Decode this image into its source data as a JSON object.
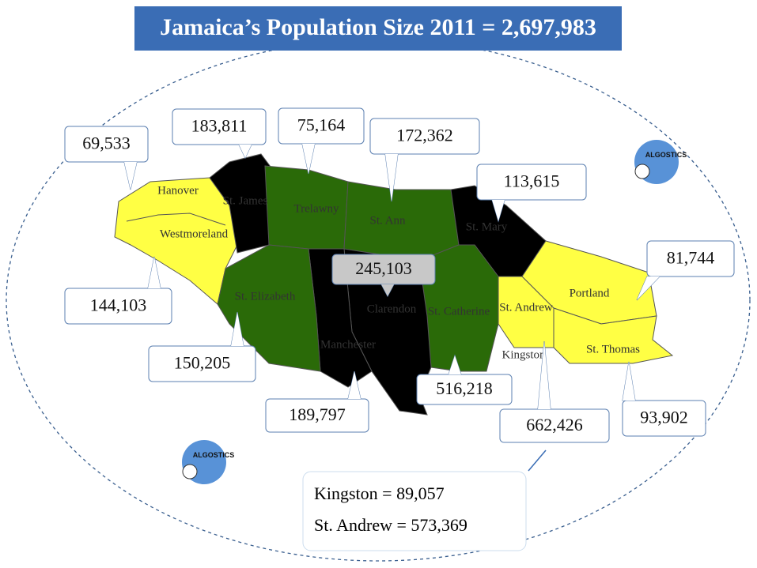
{
  "title": "Jamaica’s Population Size 2011 = 2,697,983",
  "map_labels": [
    "Hanover",
    "Westmoreland",
    "St. James",
    "Trelawny",
    "St. Ann",
    "St. Mary",
    "Portland",
    "St. Thomas",
    "St. Andrew",
    "Kingston",
    "St. Catherine",
    "Clarendon",
    "Manchester",
    "St. Elizabeth"
  ],
  "callouts": [
    "69,533",
    "183,811",
    "75,164",
    "172,362",
    "113,615",
    "81,744",
    "93,902",
    "662,426",
    "516,218",
    "245,103",
    "189,797",
    "150,205",
    "144,103"
  ],
  "note": {
    "lines": [
      "Kingston = 89,057",
      "St. Andrew = 573,369"
    ]
  },
  "logos": [
    "ALGOSTICS",
    "ALGOSTICS"
  ]
}
